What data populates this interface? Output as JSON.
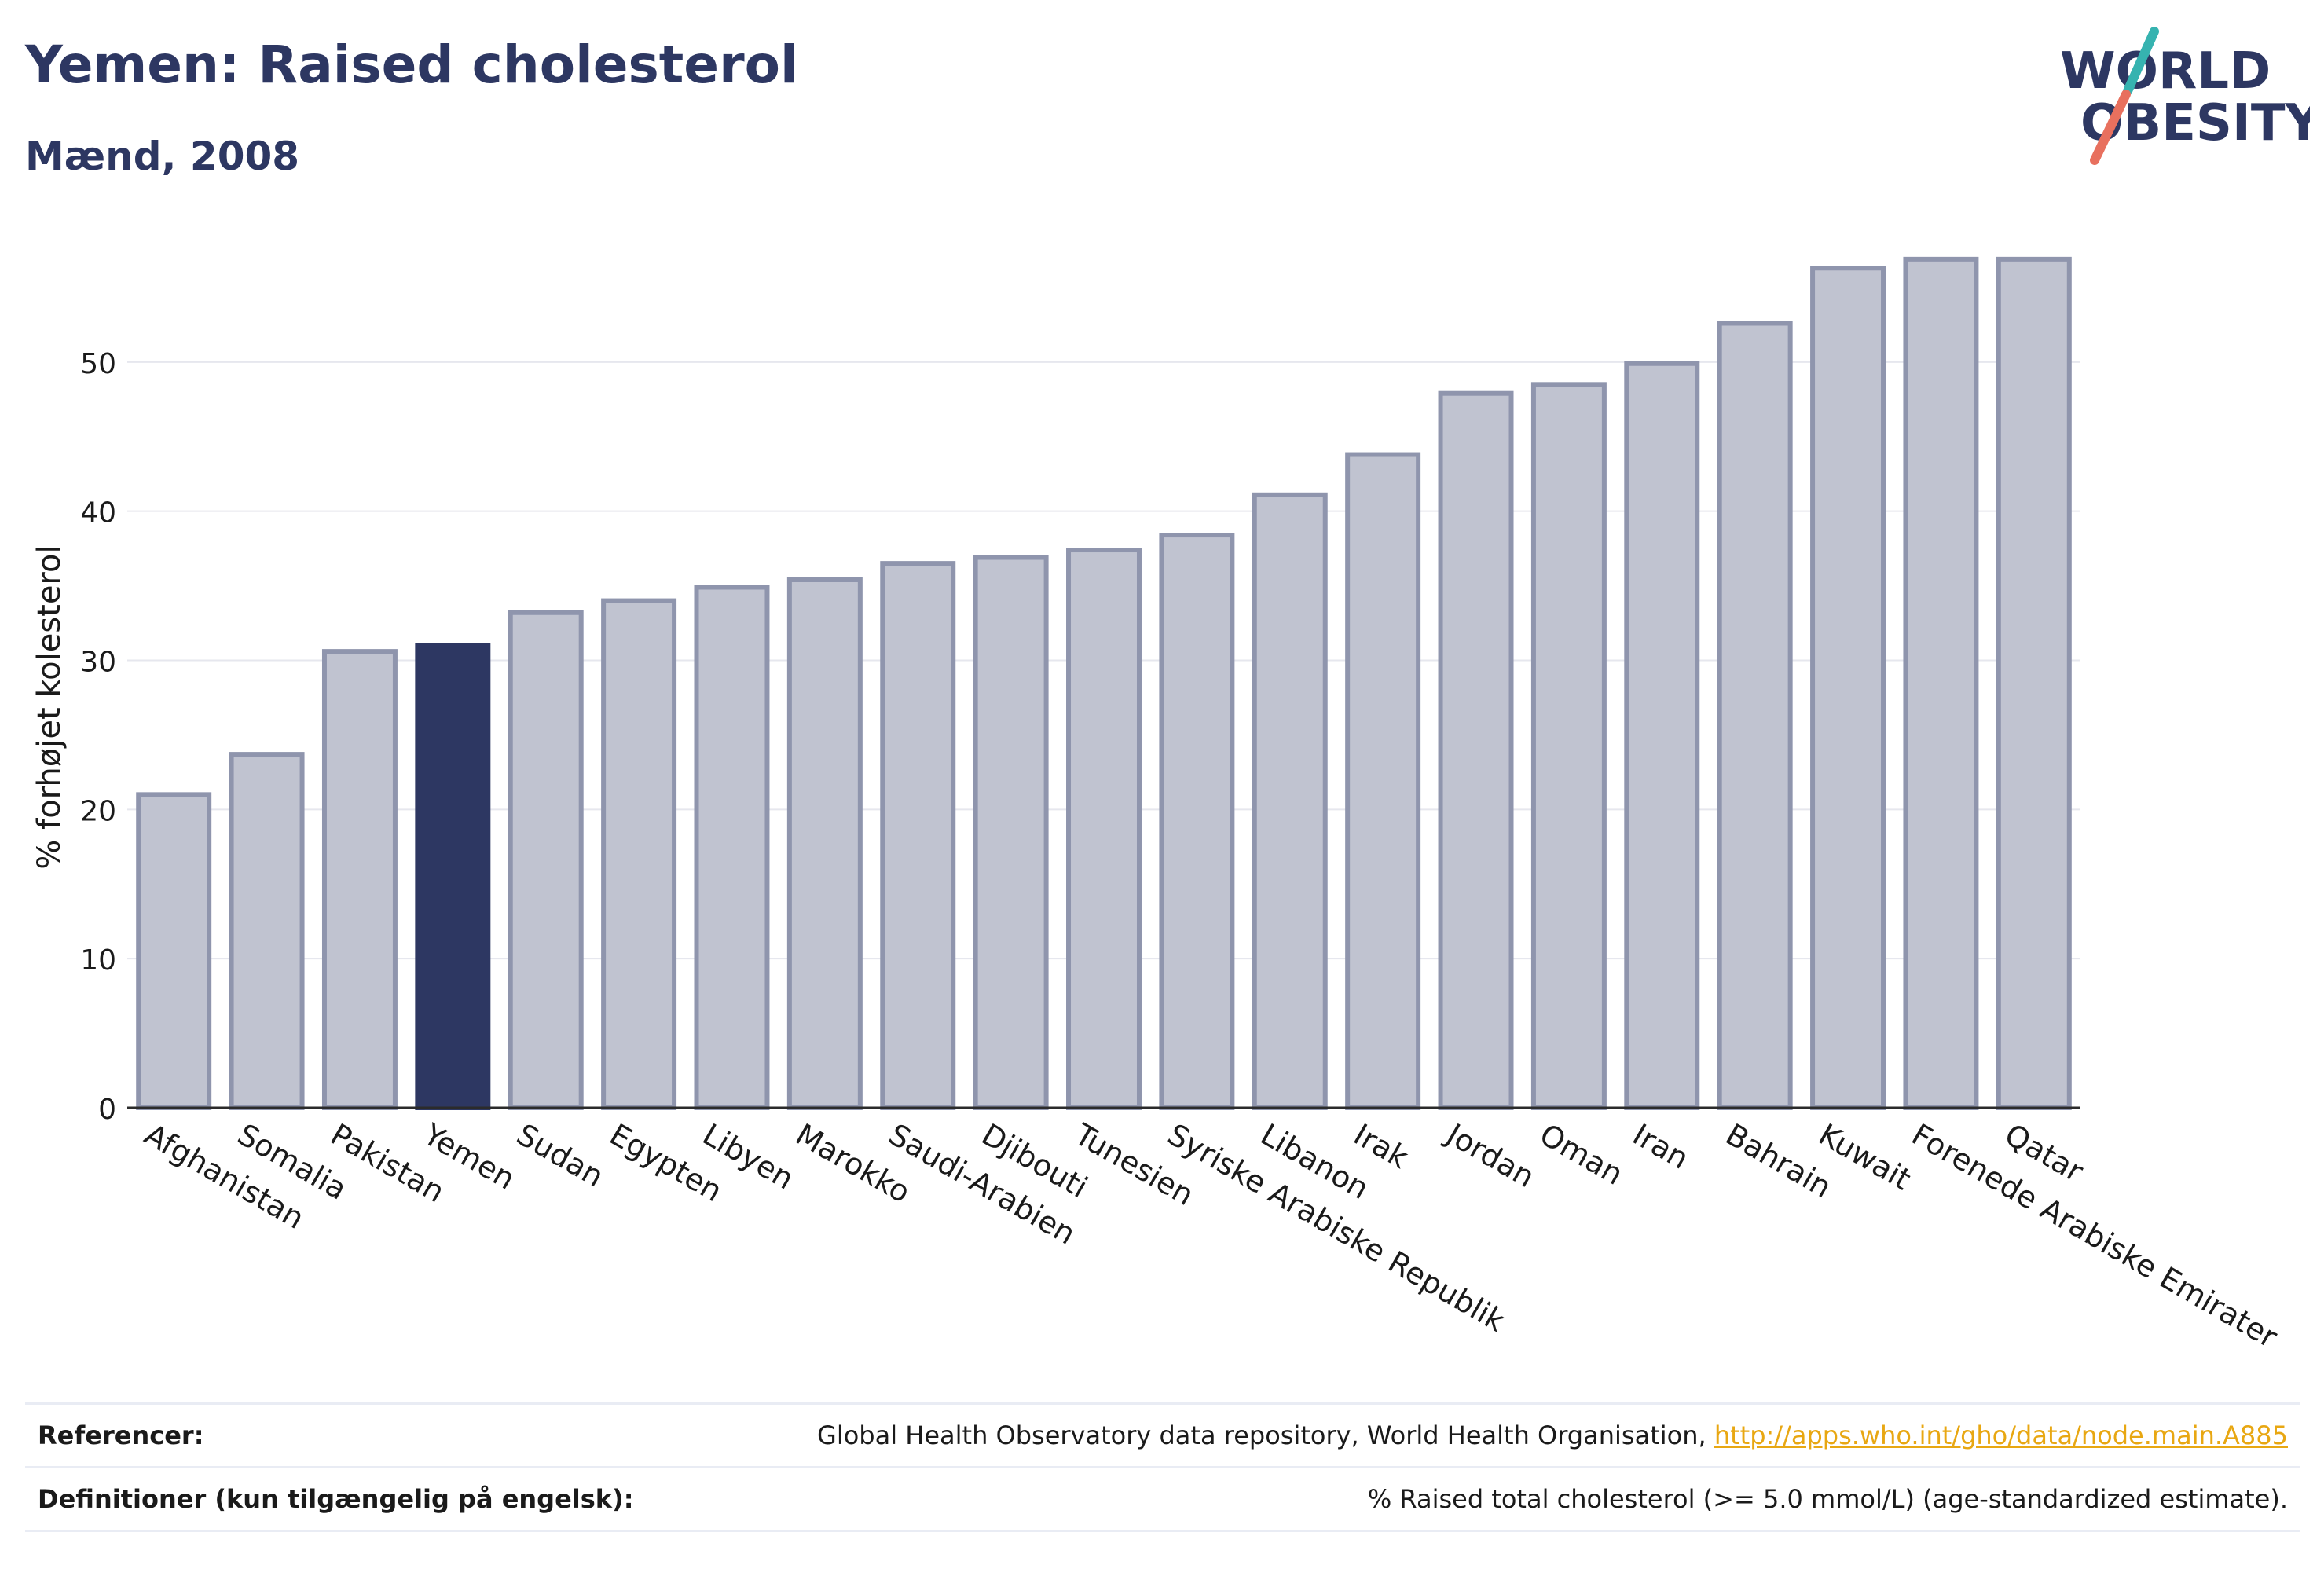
{
  "header": {
    "title": "Yemen: Raised cholesterol",
    "subtitle": "Mænd, 2008"
  },
  "logo": {
    "line1": "WORLD",
    "line2": "OBESITY",
    "accent_colors": [
      "#36b3b0",
      "#e8705e"
    ],
    "text_color": "#2d3762"
  },
  "chart_data": {
    "type": "bar",
    "categories": [
      "Afghanistan",
      "Somalia",
      "Pakistan",
      "Yemen",
      "Sudan",
      "Egypten",
      "Libyen",
      "Marokko",
      "Saudi-Arabien",
      "Djibouti",
      "Tunesien",
      "Syriske Arabiske Republik",
      "Libanon",
      "Irak",
      "Jordan",
      "Oman",
      "Iran",
      "Bahrain",
      "Kuwait",
      "Forenede Arabiske Emirater",
      "Qatar"
    ],
    "values": [
      21.0,
      23.7,
      30.6,
      31.0,
      33.2,
      34.0,
      34.9,
      35.4,
      36.5,
      36.9,
      37.4,
      38.4,
      41.1,
      43.8,
      47.9,
      48.5,
      49.9,
      52.6,
      56.3,
      56.9,
      56.9
    ],
    "highlight": "Yemen",
    "ylabel": "% forhøjet kolesterol",
    "xlabel": "",
    "ylim": [
      0,
      59
    ],
    "yticks": [
      0,
      10,
      20,
      30,
      40,
      50
    ],
    "grid": true,
    "colors": {
      "bar": "#c0c3d0",
      "bar_border": "#8f95ad",
      "highlight": "#2d3762",
      "grid": "#e6e7ee",
      "axis": "#2b2b2b"
    }
  },
  "footer": {
    "references_label": "Referencer:",
    "references_text": "Global Health Observatory data repository, World Health Organisation,",
    "references_link": "http://apps.who.int/gho/data/node.main.A885",
    "definitions_label": "Definitioner (kun tilgængelig på engelsk):",
    "definitions_text": "% Raised total cholesterol (>= 5.0 mmol/L) (age-standardized estimate)."
  }
}
